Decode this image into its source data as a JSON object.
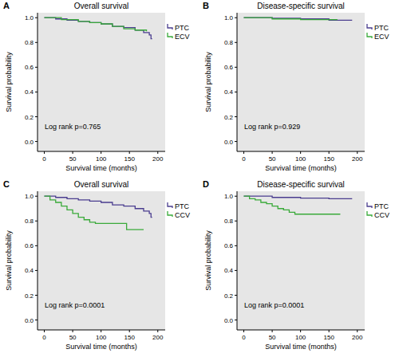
{
  "chart_data": [
    {
      "type": "step",
      "panel": "A",
      "title": "Overall survival",
      "x_label": "Survival time (months)",
      "y_label": "Survival probability",
      "annotation": "Log rank p=0.765",
      "legend": "right",
      "grid": false,
      "xlim": [
        -12,
        213
      ],
      "xticks": [
        0,
        50,
        100,
        150,
        200
      ],
      "ylim": [
        -0.08,
        1.04
      ],
      "yticks": [
        {
          "value": 0,
          "label": "0.0"
        },
        0.2,
        0.4,
        0.6,
        0.8,
        {
          "value": 1,
          "label": "1.0"
        }
      ],
      "series": [
        {
          "name": "PTC",
          "color": "#4a3d8f",
          "x": [
            0,
            20,
            40,
            60,
            80,
            100,
            120,
            140,
            160,
            175,
            185,
            188,
            190
          ],
          "values": [
            1,
            0.99,
            0.98,
            0.97,
            0.96,
            0.95,
            0.93,
            0.92,
            0.9,
            0.88,
            0.86,
            0.83,
            0.83
          ]
        },
        {
          "name": "ECV",
          "color": "#3aaa3a",
          "x": [
            0,
            30,
            60,
            80,
            100,
            120,
            140,
            160,
            180
          ],
          "values": [
            1,
            0.985,
            0.97,
            0.96,
            0.95,
            0.93,
            0.91,
            0.9,
            0.89
          ]
        }
      ]
    },
    {
      "type": "step",
      "panel": "B",
      "title": "Disease-specific survival",
      "x_label": "Survival time (months)",
      "y_label": "Survival probability",
      "annotation": "Log rank p=0.929",
      "legend": "right",
      "grid": false,
      "xlim": [
        -12,
        213
      ],
      "xticks": [
        0,
        50,
        100,
        150,
        200
      ],
      "ylim": [
        -0.08,
        1.04
      ],
      "yticks": [
        {
          "value": 0,
          "label": "0.0"
        },
        0.2,
        0.4,
        0.6,
        0.8,
        {
          "value": 1,
          "label": "1.0"
        }
      ],
      "series": [
        {
          "name": "PTC",
          "color": "#4a3d8f",
          "x": [
            0,
            50,
            100,
            150,
            190
          ],
          "values": [
            1,
            0.995,
            0.99,
            0.98,
            0.975
          ]
        },
        {
          "name": "ECV",
          "color": "#3aaa3a",
          "x": [
            0,
            50,
            100,
            150,
            165
          ],
          "values": [
            1,
            0.99,
            0.985,
            0.985,
            0.985
          ]
        }
      ]
    },
    {
      "type": "step",
      "panel": "C",
      "title": "Overall survival",
      "x_label": "Survival time (months)",
      "y_label": "Survival probability",
      "annotation": "Log rank p=0.0001",
      "legend": "right",
      "grid": false,
      "xlim": [
        -12,
        213
      ],
      "xticks": [
        0,
        50,
        100,
        150,
        200
      ],
      "ylim": [
        -0.08,
        1.04
      ],
      "yticks": [
        {
          "value": 0,
          "label": "0.0"
        },
        0.2,
        0.4,
        0.6,
        0.8,
        {
          "value": 1,
          "label": "1.0"
        }
      ],
      "series": [
        {
          "name": "PTC",
          "color": "#4a3d8f",
          "x": [
            0,
            20,
            40,
            60,
            80,
            100,
            120,
            140,
            160,
            175,
            185,
            188,
            190
          ],
          "values": [
            1,
            0.99,
            0.98,
            0.97,
            0.96,
            0.95,
            0.93,
            0.92,
            0.9,
            0.88,
            0.86,
            0.83,
            0.83
          ]
        },
        {
          "name": "CCV",
          "color": "#3aaa3a",
          "x": [
            0,
            10,
            20,
            30,
            40,
            50,
            60,
            70,
            80,
            90,
            100,
            120,
            145,
            150,
            175
          ],
          "values": [
            1,
            0.97,
            0.95,
            0.92,
            0.89,
            0.86,
            0.83,
            0.81,
            0.79,
            0.78,
            0.78,
            0.78,
            0.73,
            0.73,
            0.73
          ]
        }
      ]
    },
    {
      "type": "step",
      "panel": "D",
      "title": "Disease-specific survival",
      "x_label": "Survival time (months)",
      "y_label": "Survival probability",
      "annotation": "Log rank p=0.0001",
      "legend": "right",
      "grid": false,
      "xlim": [
        -12,
        213
      ],
      "xticks": [
        0,
        50,
        100,
        150,
        200
      ],
      "ylim": [
        -0.08,
        1.04
      ],
      "yticks": [
        {
          "value": 0,
          "label": "0.0"
        },
        0.2,
        0.4,
        0.6,
        0.8,
        {
          "value": 1,
          "label": "1.0"
        }
      ],
      "series": [
        {
          "name": "PTC",
          "color": "#4a3d8f",
          "x": [
            0,
            50,
            100,
            150,
            190
          ],
          "values": [
            1,
            0.99,
            0.985,
            0.98,
            0.975
          ]
        },
        {
          "name": "CCV",
          "color": "#3aaa3a",
          "x": [
            0,
            10,
            20,
            30,
            40,
            50,
            60,
            70,
            80,
            90,
            100,
            170
          ],
          "values": [
            1,
            0.98,
            0.97,
            0.95,
            0.94,
            0.92,
            0.9,
            0.89,
            0.87,
            0.855,
            0.855,
            0.855
          ]
        }
      ]
    }
  ]
}
